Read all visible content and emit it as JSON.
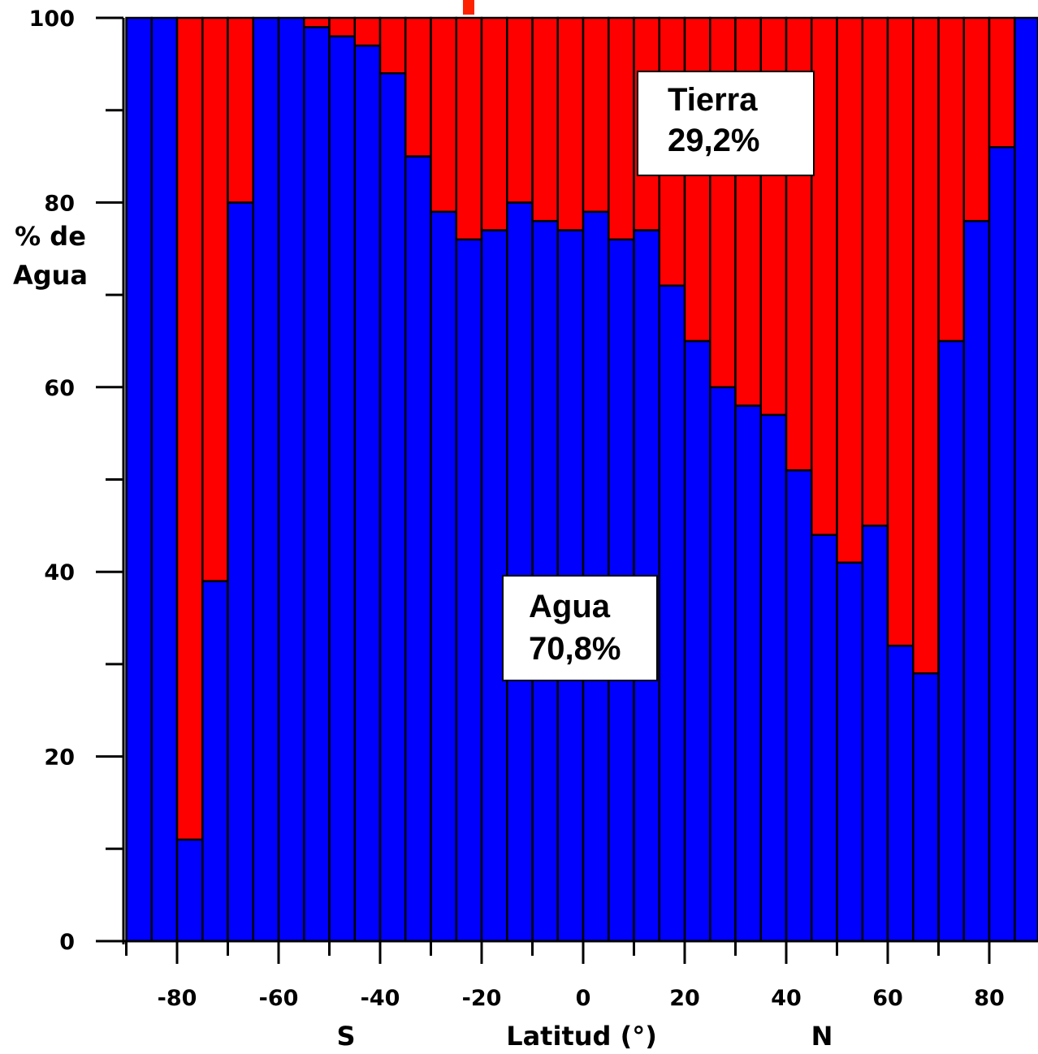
{
  "chart_data": {
    "type": "bar",
    "stacked": true,
    "x": [
      -87.5,
      -82.5,
      -77.5,
      -72.5,
      -67.5,
      -62.5,
      -57.5,
      -52.5,
      -47.5,
      -42.5,
      -37.5,
      -32.5,
      -27.5,
      -22.5,
      -17.5,
      -12.5,
      -7.5,
      -2.5,
      2.5,
      7.5,
      12.5,
      17.5,
      22.5,
      27.5,
      32.5,
      37.5,
      42.5,
      47.5,
      52.5,
      57.5,
      62.5,
      67.5,
      72.5,
      77.5,
      82.5,
      87.5
    ],
    "series": [
      {
        "name": "Agua",
        "color": "#0000ff",
        "values": [
          100,
          100,
          11,
          39,
          80,
          100,
          100,
          99,
          98,
          97,
          94,
          85,
          79,
          76,
          77,
          80,
          78,
          77,
          79,
          76,
          77,
          71,
          65,
          60,
          58,
          57,
          51,
          44,
          41,
          45,
          32,
          29,
          65,
          78,
          86,
          100
        ]
      },
      {
        "name": "Tierra",
        "color": "#ff0000",
        "values": [
          0,
          0,
          89,
          61,
          20,
          0,
          0,
          1,
          2,
          3,
          6,
          15,
          21,
          24,
          23,
          20,
          22,
          23,
          21,
          24,
          23,
          29,
          35,
          40,
          42,
          43,
          49,
          56,
          59,
          55,
          68,
          71,
          35,
          22,
          14,
          0
        ]
      }
    ],
    "ylabel_lines": [
      "% de",
      "Agua"
    ],
    "xlabel": "Latitud (°)",
    "hemisphere_labels": {
      "south": "S",
      "north": "N"
    },
    "x_ticks": [
      -80,
      -60,
      -40,
      -20,
      0,
      20,
      40,
      60,
      80
    ],
    "y_ticks": [
      0,
      20,
      40,
      60,
      80,
      100
    ],
    "xlim": [
      -90,
      90
    ],
    "ylim": [
      0,
      100
    ],
    "annotations": [
      {
        "series": "Tierra",
        "lines": [
          "Tierra",
          "29,2%"
        ]
      },
      {
        "series": "Agua",
        "lines": [
          "Agua",
          "70,8%"
        ]
      }
    ],
    "grid": false,
    "legend": "none"
  }
}
